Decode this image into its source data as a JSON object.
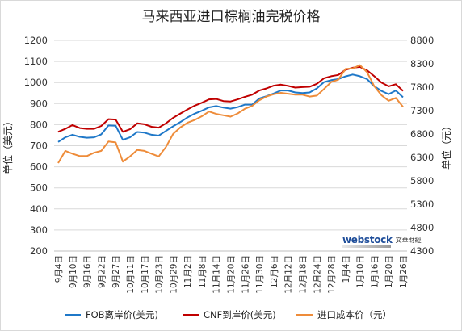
{
  "chart_data": {
    "type": "line",
    "title": "马来西亚进口棕榈油完税价格",
    "ylabel_left": "单位（美元）",
    "ylabel_right": "单位（元）",
    "ylim_left": [
      200,
      1200
    ],
    "ylim_right": [
      4300,
      8800
    ],
    "yticks_left": [
      "200",
      "300",
      "400",
      "500",
      "600",
      "700",
      "800",
      "900",
      "1000",
      "1100",
      "1200"
    ],
    "yticks_right": [
      "4300",
      "4800",
      "5300",
      "5800",
      "6300",
      "6800",
      "7300",
      "7800",
      "8300",
      "8800"
    ],
    "x_labels": [
      "9月4日",
      "9月7日",
      "9月10日",
      "9月13日",
      "9月16日",
      "9月19日",
      "9月22日",
      "9月25日",
      "9月27日",
      "10月8日",
      "10月11日",
      "10月14日",
      "10月17日",
      "10月20日",
      "10月23日",
      "10月26日",
      "10月29日",
      "10月30日",
      "11月2日",
      "11月5日",
      "11月8日",
      "11月11日",
      "11月14日",
      "11月17日",
      "11月20日",
      "11月23日",
      "11月26日",
      "11月27日",
      "11月30日",
      "12月3日",
      "12月6日",
      "12月9日",
      "12月12日",
      "12月15日",
      "12月18日",
      "12月21日",
      "12月24日",
      "12月25日",
      "12月28日",
      "12月31日",
      "1月4日",
      "1月7日",
      "1月10日",
      "1月13日",
      "1月16日",
      "1月19日",
      "1月20日",
      "1月23日",
      "1月26日"
    ],
    "series": [
      {
        "name": "FOB离岸价(美元)",
        "axis": "left",
        "color": "#1f78c8",
        "values": [
          718,
          740,
          752,
          742,
          738,
          740,
          754,
          796,
          795,
          728,
          740,
          765,
          762,
          752,
          748,
          770,
          792,
          812,
          834,
          852,
          866,
          882,
          888,
          881,
          876,
          883,
          895,
          895,
          924,
          935,
          948,
          962,
          962,
          953,
          950,
          953,
          972,
          1002,
          1011,
          1016,
          1029,
          1038,
          1030,
          1016,
          982,
          960,
          945,
          962,
          930
        ]
      },
      {
        "name": "CNF到岸价(美元)",
        "axis": "left",
        "color": "#c00000",
        "values": [
          766,
          780,
          798,
          784,
          780,
          780,
          794,
          826,
          824,
          766,
          778,
          806,
          802,
          790,
          786,
          806,
          832,
          852,
          872,
          890,
          904,
          920,
          922,
          912,
          910,
          920,
          932,
          942,
          962,
          972,
          985,
          990,
          984,
          976,
          978,
          980,
          994,
          1020,
          1030,
          1036,
          1060,
          1070,
          1074,
          1058,
          1030,
          1000,
          982,
          992,
          960
        ]
      },
      {
        "name": "进口成本价（元）",
        "axis": "right",
        "color": "#ee8c3a",
        "values": [
          6180,
          6440,
          6380,
          6330,
          6330,
          6400,
          6440,
          6640,
          6620,
          6210,
          6320,
          6460,
          6440,
          6380,
          6320,
          6520,
          6800,
          6940,
          7040,
          7100,
          7180,
          7280,
          7230,
          7200,
          7170,
          7240,
          7340,
          7400,
          7520,
          7600,
          7650,
          7680,
          7660,
          7640,
          7640,
          7600,
          7620,
          7760,
          7910,
          7960,
          8190,
          8200,
          8270,
          8120,
          7820,
          7630,
          7510,
          7570,
          7380
        ]
      }
    ],
    "grid": "horizontal",
    "legend_position": "bottom"
  },
  "watermark": {
    "brand": "webstock",
    "sub": "文華財經"
  }
}
